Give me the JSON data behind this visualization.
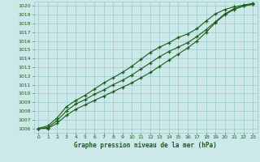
{
  "title": "Graphe pression niveau de la mer (hPa)",
  "background_color": "#cce8e8",
  "grid_color": "#99cccc",
  "line_color": "#1a5c1a",
  "marker_color": "#1a5c1a",
  "xlim": [
    -0.5,
    23.5
  ],
  "ylim": [
    1005.5,
    1020.5
  ],
  "xticks": [
    0,
    1,
    2,
    3,
    4,
    5,
    6,
    7,
    8,
    9,
    10,
    11,
    12,
    13,
    14,
    15,
    16,
    17,
    18,
    19,
    20,
    21,
    22,
    23
  ],
  "yticks": [
    1006,
    1007,
    1008,
    1009,
    1010,
    1011,
    1012,
    1013,
    1014,
    1015,
    1016,
    1017,
    1018,
    1019,
    1020
  ],
  "series": [
    [
      1006.0,
      1006.3,
      1007.2,
      1008.5,
      1009.2,
      1009.8,
      1010.5,
      1011.2,
      1011.8,
      1012.4,
      1013.1,
      1013.9,
      1014.7,
      1015.3,
      1015.8,
      1016.4,
      1016.8,
      1017.4,
      1018.3,
      1019.1,
      1019.6,
      1019.9,
      1020.1,
      1020.3
    ],
    [
      1006.0,
      1006.1,
      1006.9,
      1008.0,
      1008.8,
      1009.3,
      1009.9,
      1010.4,
      1011.0,
      1011.5,
      1012.1,
      1012.8,
      1013.5,
      1014.2,
      1014.8,
      1015.3,
      1015.8,
      1016.5,
      1017.3,
      1018.2,
      1019.1,
      1019.7,
      1020.0,
      1020.2
    ],
    [
      1006.0,
      1006.0,
      1006.6,
      1007.5,
      1008.2,
      1008.7,
      1009.2,
      1009.7,
      1010.2,
      1010.7,
      1011.2,
      1011.8,
      1012.4,
      1013.1,
      1013.8,
      1014.5,
      1015.2,
      1016.0,
      1017.0,
      1018.1,
      1019.0,
      1019.6,
      1020.0,
      1020.2
    ]
  ],
  "figsize": [
    3.2,
    2.0
  ],
  "dpi": 100,
  "title_fontsize": 5.5,
  "tick_fontsize": 4.5,
  "linewidth": 0.8,
  "markersize": 3.5,
  "markeredgewidth": 0.9
}
